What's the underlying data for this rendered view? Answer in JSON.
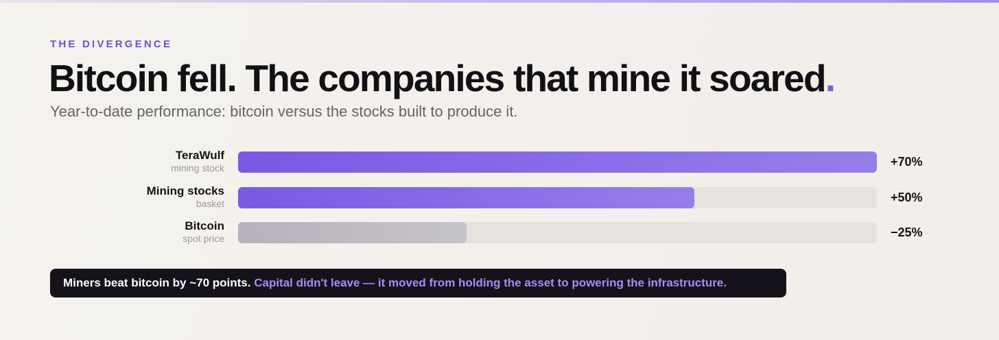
{
  "chart_data": {
    "type": "bar",
    "orientation": "horizontal",
    "eyebrow": "THE DIVERGENCE",
    "title": "Bitcoin fell. The companies that mine it soared",
    "title_accent": ".",
    "subtitle": "Year-to-date performance: bitcoin versus the stocks built to produce it.",
    "categories": [
      "TeraWulf",
      "Mining stocks",
      "Bitcoin"
    ],
    "sublabels": [
      "mining stock",
      "basket",
      "spot price"
    ],
    "values": [
      70,
      50,
      -25
    ],
    "value_labels": [
      "+70%",
      "+50%",
      "−25%"
    ],
    "colors": [
      "#7a59e4",
      "#7a59e4",
      "#b7b2bb"
    ],
    "xlim": [
      0,
      70
    ],
    "callout": "Miners beat bitcoin by ~70 points.",
    "callout_accent": "Capital didn't leave — it moved from holding the asset to powering the infrastructure."
  }
}
